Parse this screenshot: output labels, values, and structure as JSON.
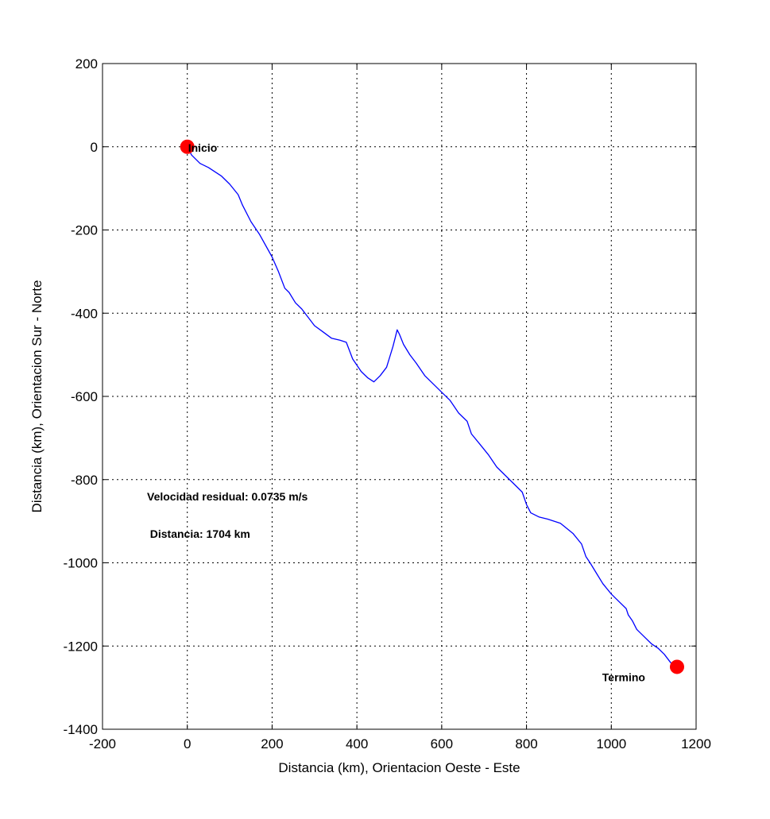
{
  "chart_data": {
    "type": "line",
    "xlabel": "Distancia (km), Orientacion Oeste - Este",
    "ylabel": "Distancia (km), Orientacion Sur - Norte",
    "xlim": [
      -200,
      1200
    ],
    "ylim": [
      -1400,
      200
    ],
    "xticks": [
      -200,
      0,
      200,
      400,
      600,
      800,
      1000,
      1200
    ],
    "yticks": [
      200,
      0,
      -200,
      -400,
      -600,
      -800,
      -1000,
      -1200,
      -1400
    ],
    "xtick_labels": [
      "-200",
      "0",
      "200",
      "400",
      "600",
      "800",
      "1000",
      "1200"
    ],
    "ytick_labels": [
      "200",
      "0",
      "-200",
      "-400",
      "-600",
      "-800",
      "-1000",
      "-1200",
      "-1400"
    ],
    "grid": true,
    "series": [
      {
        "color": "#0000ff",
        "x": [
          0,
          10,
          30,
          50,
          80,
          100,
          120,
          130,
          150,
          170,
          200,
          215,
          230,
          240,
          255,
          270,
          285,
          300,
          320,
          340,
          360,
          375,
          390,
          410,
          425,
          440,
          455,
          470,
          485,
          490,
          495,
          500,
          510,
          525,
          540,
          560,
          580,
          600,
          620,
          640,
          660,
          670,
          690,
          710,
          730,
          750,
          770,
          790,
          800,
          810,
          830,
          850,
          880,
          910,
          930,
          940,
          950,
          965,
          980,
          1000,
          1020,
          1035,
          1040,
          1050,
          1060,
          1080,
          1095,
          1110,
          1125,
          1140,
          1155
        ],
        "y": [
          0,
          -20,
          -40,
          -50,
          -70,
          -90,
          -115,
          -140,
          -180,
          -210,
          -265,
          -300,
          -340,
          -350,
          -375,
          -390,
          -410,
          -430,
          -445,
          -460,
          -465,
          -470,
          -510,
          -540,
          -555,
          -565,
          -550,
          -530,
          -480,
          -460,
          -440,
          -450,
          -475,
          -500,
          -520,
          -550,
          -570,
          -590,
          -610,
          -640,
          -660,
          -690,
          -715,
          -740,
          -770,
          -790,
          -810,
          -830,
          -860,
          -880,
          -890,
          -895,
          -905,
          -930,
          -955,
          -985,
          -1000,
          -1025,
          -1050,
          -1075,
          -1095,
          -1110,
          -1125,
          -1140,
          -1160,
          -1180,
          -1195,
          -1205,
          -1220,
          -1240,
          -1250
        ]
      }
    ],
    "markers": [
      {
        "x": 0,
        "y": 0,
        "color": "#ff0000",
        "label": "Inicio"
      },
      {
        "x": 1155,
        "y": -1250,
        "color": "#ff0000",
        "label": "Termino"
      }
    ],
    "annotations": [
      {
        "text": "Velocidad residual: 0.0735 m/s",
        "x": -95,
        "y": -850
      },
      {
        "text": "Distancia: 1704 km",
        "x": -88,
        "y": -940
      }
    ]
  }
}
